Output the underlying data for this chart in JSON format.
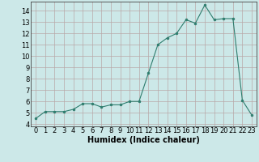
{
  "x": [
    0,
    1,
    2,
    3,
    4,
    5,
    6,
    7,
    8,
    9,
    10,
    11,
    12,
    13,
    14,
    15,
    16,
    17,
    18,
    19,
    20,
    21,
    22,
    23
  ],
  "y": [
    4.5,
    5.1,
    5.1,
    5.1,
    5.3,
    5.8,
    5.8,
    5.5,
    5.7,
    5.7,
    6.0,
    6.0,
    8.5,
    11.0,
    11.6,
    12.0,
    13.2,
    12.9,
    14.5,
    13.2,
    13.3,
    13.3,
    6.1,
    4.8
  ],
  "line_color": "#2e7d6e",
  "marker_color": "#2e7d6e",
  "bg_color": "#cce8e8",
  "grid_color": "#b8a8a8",
  "xlabel": "Humidex (Indice chaleur)",
  "xlim": [
    -0.5,
    23.5
  ],
  "ylim": [
    3.8,
    14.8
  ],
  "yticks": [
    4,
    5,
    6,
    7,
    8,
    9,
    10,
    11,
    12,
    13,
    14
  ],
  "xticks": [
    0,
    1,
    2,
    3,
    4,
    5,
    6,
    7,
    8,
    9,
    10,
    11,
    12,
    13,
    14,
    15,
    16,
    17,
    18,
    19,
    20,
    21,
    22,
    23
  ],
  "tick_label_fontsize": 6,
  "xlabel_fontsize": 7
}
